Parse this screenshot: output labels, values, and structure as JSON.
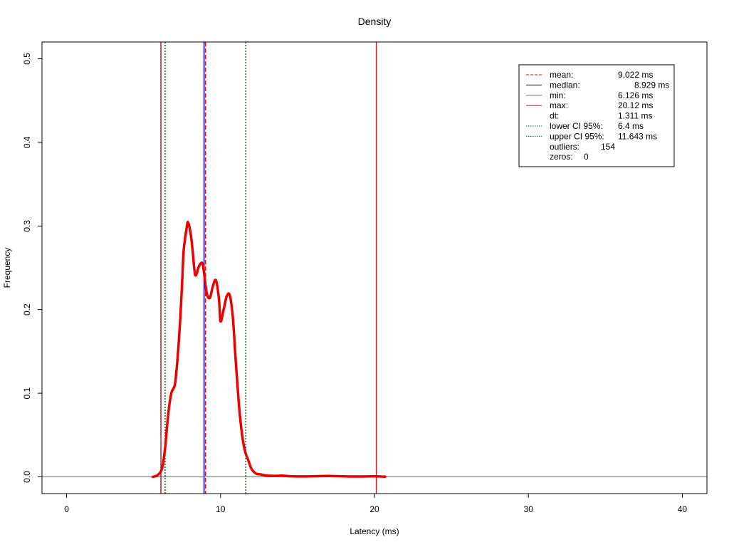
{
  "chart_data": {
    "type": "line",
    "title": "Density",
    "xlabel": "Latency (ms)",
    "ylabel": "Frequency",
    "xlim": [
      -1.6,
      41.6
    ],
    "ylim": [
      -0.02,
      0.52
    ],
    "xticks": [
      0,
      10,
      20,
      30,
      40
    ],
    "yticks": [
      0.0,
      0.1,
      0.2,
      0.3,
      0.4,
      0.5
    ],
    "xtick_labels": [
      "0",
      "10",
      "20",
      "30",
      "40"
    ],
    "ytick_labels": [
      "0.0",
      "0.1",
      "0.2",
      "0.3",
      "0.4",
      "0.5"
    ],
    "grid": false,
    "legend_position": "top-right",
    "series": [
      {
        "type": "density",
        "color": "#ee0000",
        "x": [
          5.6,
          5.9,
          6.2,
          6.4,
          6.6,
          6.8,
          7.0,
          7.1,
          7.3,
          7.5,
          7.6,
          7.8,
          7.9,
          8.1,
          8.3,
          8.4,
          8.6,
          8.8,
          8.9,
          9.1,
          9.3,
          9.5,
          9.7,
          9.9,
          10.0,
          10.2,
          10.4,
          10.6,
          10.8,
          11.0,
          11.2,
          11.4,
          11.6,
          11.8,
          12.0,
          12.3,
          12.6,
          13.0,
          13.5,
          14.0,
          14.5,
          15.5,
          17.0,
          18.5,
          20.0,
          20.7
        ],
        "y": [
          0.0,
          0.002,
          0.01,
          0.035,
          0.075,
          0.1,
          0.108,
          0.12,
          0.165,
          0.23,
          0.27,
          0.298,
          0.304,
          0.285,
          0.248,
          0.241,
          0.252,
          0.256,
          0.248,
          0.22,
          0.214,
          0.228,
          0.235,
          0.212,
          0.186,
          0.2,
          0.216,
          0.217,
          0.19,
          0.135,
          0.085,
          0.05,
          0.03,
          0.02,
          0.01,
          0.004,
          0.003,
          0.0015,
          0.0012,
          0.0015,
          0.0008,
          0.0005,
          0.001,
          0.0004,
          0.0006,
          0.0002
        ]
      }
    ],
    "reference_lines": [
      {
        "name": "mean",
        "value": 9.022,
        "color": "#ff0000",
        "style": "dashed"
      },
      {
        "name": "median",
        "value": 8.929,
        "color": "#0000cc",
        "style": "solid"
      },
      {
        "name": "min",
        "value": 6.126,
        "color": "#a52a2a",
        "style": "solid"
      },
      {
        "name": "max",
        "value": 20.12,
        "color": "#a52a2a",
        "style": "solid"
      },
      {
        "name": "lower CI 95%",
        "value": 6.4,
        "color": "#006400",
        "style": "dotted"
      },
      {
        "name": "upper CI 95%",
        "value": 11.643,
        "color": "#006400",
        "style": "dotted"
      }
    ],
    "baseline": {
      "value": 0.0,
      "color": "#808080"
    },
    "legend": [
      {
        "label": "mean:",
        "value": "9.022 ms",
        "color": "#ff0000",
        "style": "dashed"
      },
      {
        "label": "median:",
        "value": "8.929 ms",
        "color": "#0000cc",
        "style": "solid"
      },
      {
        "label": "min:",
        "value": "6.126 ms",
        "color": "#cc3366",
        "style": "solid"
      },
      {
        "label": "max:",
        "value": "20.12 ms",
        "color": "#a52a2a",
        "style": "solid"
      },
      {
        "label": "dt:",
        "value": "1.311 ms",
        "color": "",
        "style": "none"
      },
      {
        "label": "lower CI 95%:",
        "value": "6.4 ms",
        "color": "#006400",
        "style": "dotted"
      },
      {
        "label": "upper CI 95%:",
        "value": "11.643 ms",
        "color": "#006400",
        "style": "dotted"
      },
      {
        "label": "outliers:",
        "value": "154",
        "color": "",
        "style": "none"
      },
      {
        "label": "zeros:",
        "value": "0",
        "color": "",
        "style": "none"
      }
    ]
  }
}
